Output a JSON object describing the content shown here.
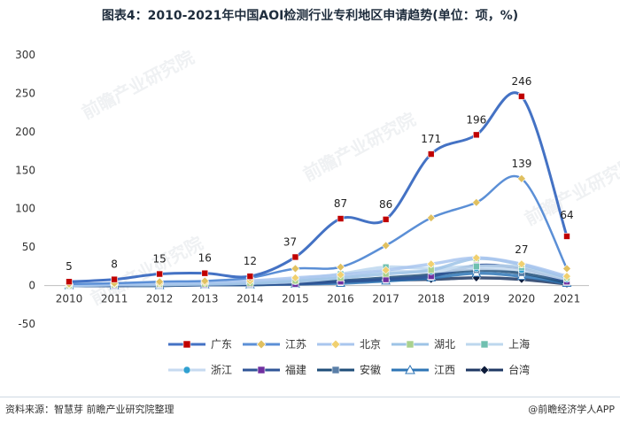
{
  "title": "图表4：2010-2021年中国AOI检测行业专利地区申请趋势(单位：项，%)",
  "source": "资料来源：智慧芽 前瞻产业研究院整理",
  "brand": "@前瞻经济学人APP",
  "watermark_text": "前瞻产业研究院",
  "chart_data": {
    "type": "line",
    "title": "图表4：2010-2021年中国AOI检测行业专利地区申请趋势(单位：项，%)",
    "xlabel": "",
    "ylabel": "",
    "x": [
      "2010",
      "2011",
      "2012",
      "2013",
      "2014",
      "2015",
      "2016",
      "2017",
      "2018",
      "2019",
      "2020",
      "2021"
    ],
    "ylim": [
      -50,
      300
    ],
    "yticks": [
      "300",
      "250",
      "200",
      "150",
      "100",
      "50",
      "0",
      "-50"
    ],
    "grid": false,
    "legend_position": "bottom",
    "series": [
      {
        "name": "广东",
        "color": "#4472c4",
        "marker": "square",
        "marker_color": "#c00000",
        "values": [
          5,
          8,
          15,
          16,
          12,
          37,
          87,
          86,
          171,
          196,
          246,
          64
        ],
        "labels": [
          "5",
          "8",
          "15",
          "16",
          "12",
          "37",
          "87",
          "86",
          "171",
          "196",
          "246",
          "64"
        ]
      },
      {
        "name": "江苏",
        "color": "#5b8fd6",
        "marker": "diamond",
        "marker_color": "#e0c060",
        "values": [
          2,
          3,
          5,
          6,
          10,
          22,
          24,
          52,
          88,
          108,
          139,
          22
        ],
        "labels": [
          "",
          "",
          "",
          "",
          "",
          "",
          "",
          "",
          "",
          "",
          "139",
          ""
        ]
      },
      {
        "name": "北京",
        "color": "#a9c6ee",
        "marker": "diamond",
        "marker_color": "#f0d070",
        "values": [
          1,
          2,
          3,
          4,
          6,
          10,
          14,
          20,
          28,
          36,
          28,
          12
        ],
        "labels": []
      },
      {
        "name": "湖北",
        "color": "#9dc3e6",
        "marker": "square",
        "marker_color": "#a9d18e",
        "values": [
          0,
          1,
          2,
          2,
          3,
          6,
          10,
          15,
          20,
          35,
          27,
          10
        ],
        "labels": [
          "",
          "",
          "",
          "",
          "",
          "",
          "",
          "",
          "",
          "",
          "27",
          ""
        ]
      },
      {
        "name": "上海",
        "color": "#bdd7ee",
        "marker": "square",
        "marker_color": "#70c0b0",
        "values": [
          1,
          2,
          3,
          3,
          5,
          8,
          15,
          24,
          22,
          25,
          24,
          10
        ],
        "labels": []
      },
      {
        "name": "浙江",
        "color": "#c6daf0",
        "marker": "circle",
        "marker_color": "#30a0d0",
        "values": [
          0,
          1,
          1,
          2,
          3,
          5,
          10,
          18,
          18,
          22,
          20,
          8
        ],
        "labels": []
      },
      {
        "name": "福建",
        "color": "#2f5597",
        "marker": "square",
        "marker_color": "#7030a0",
        "values": [
          0,
          0,
          1,
          1,
          2,
          2,
          5,
          8,
          12,
          26,
          22,
          5
        ],
        "labels": []
      },
      {
        "name": "安徽",
        "color": "#1f4e79",
        "marker": "square",
        "marker_color": "#5a7fa8",
        "values": [
          0,
          0,
          0,
          1,
          1,
          3,
          6,
          10,
          14,
          20,
          16,
          4
        ],
        "labels": []
      },
      {
        "name": "江西",
        "color": "#2e75b6",
        "marker": "triangle",
        "marker_color": "#ffffff",
        "values": [
          0,
          0,
          0,
          1,
          1,
          2,
          3,
          6,
          10,
          16,
          12,
          3
        ],
        "labels": []
      },
      {
        "name": "台湾",
        "color": "#1f3864",
        "marker": "diamond",
        "marker_color": "#0d1b3a",
        "values": [
          1,
          1,
          2,
          2,
          3,
          4,
          5,
          7,
          8,
          10,
          8,
          2
        ],
        "labels": []
      }
    ]
  }
}
